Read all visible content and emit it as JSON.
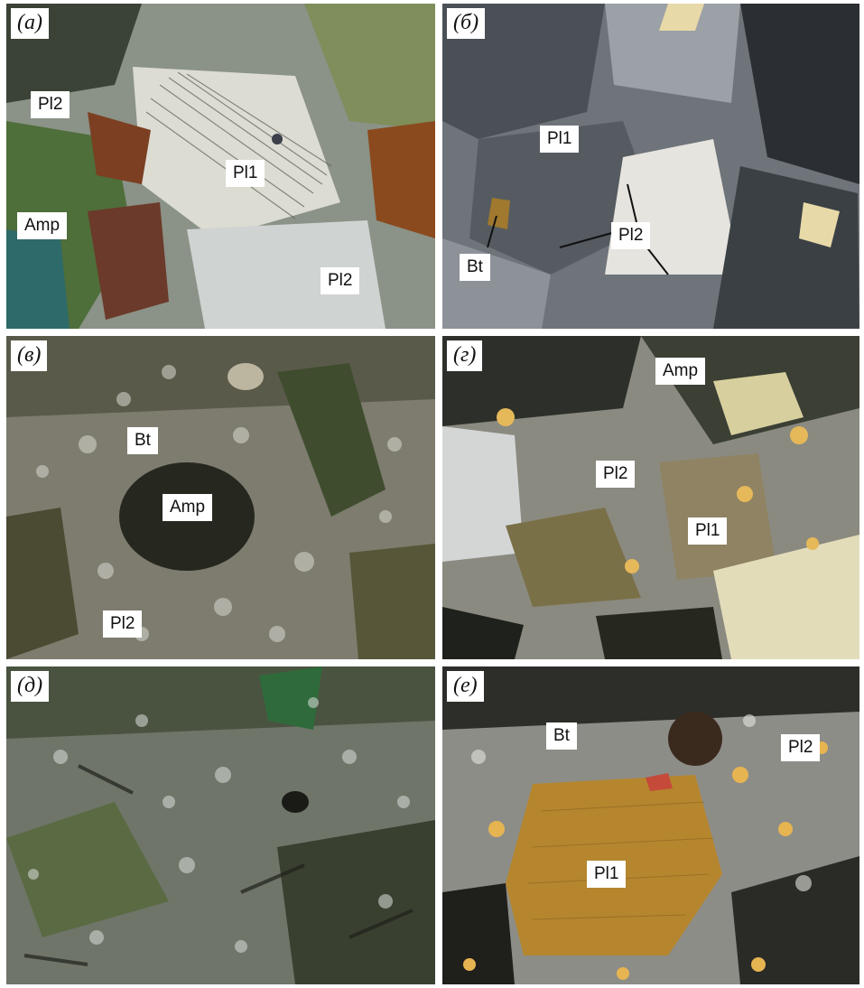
{
  "panels": [
    {
      "id": "a",
      "tag": "(а)",
      "labels": {
        "pl2_top": "Pl2",
        "pl1": "Pl1",
        "amp": "Amp",
        "pl2_bottom": "Pl2"
      }
    },
    {
      "id": "b",
      "tag": "(б)",
      "labels": {
        "pl1": "Pl1",
        "pl2": "Pl2",
        "bt": "Bt"
      }
    },
    {
      "id": "v",
      "tag": "(в)",
      "labels": {
        "bt": "Bt",
        "amp": "Amp",
        "pl2": "Pl2"
      }
    },
    {
      "id": "g",
      "tag": "(г)",
      "labels": {
        "amp": "Amp",
        "pl2": "Pl2",
        "pl1": "Pl1"
      }
    },
    {
      "id": "d",
      "tag": "(д)",
      "labels": {}
    },
    {
      "id": "e",
      "tag": "(е)",
      "labels": {
        "bt": "Bt",
        "pl2": "Pl2",
        "pl1": "Pl1"
      }
    }
  ],
  "colors": {
    "a": [
      "#2f3a2a",
      "#d9dcd6",
      "#5c7d3a",
      "#7a4020",
      "#e8e4dc"
    ],
    "b": [
      "#3a3e44",
      "#8d949b",
      "#d6d2c4",
      "#e8d9a8",
      "#1f2225"
    ],
    "v": [
      "#2a2a22",
      "#cfcfc8",
      "#6b6a3f",
      "#3d4a2c",
      "#8a8874"
    ],
    "g": [
      "#232520",
      "#d8cf9e",
      "#7a7050",
      "#cdd2d6",
      "#e5b85a"
    ],
    "d": [
      "#2c3026",
      "#c3c8c4",
      "#5a6a42",
      "#1f221c",
      "#8e9a86"
    ],
    "e": [
      "#1e1e1c",
      "#d9d9d4",
      "#b5862e",
      "#e6b450",
      "#6e6e6c"
    ]
  }
}
